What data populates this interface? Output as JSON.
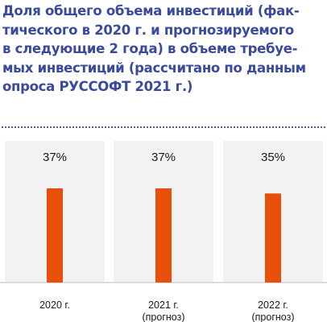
{
  "chart_data": {
    "type": "bar",
    "title_lines": [
      "Доля общего объема инвестиций (фак-",
      "тического в 2020 г. и прогнозируемого",
      "в следующие 2 года) в объеме требуе-",
      "мых инвестиций (рассчитано по данным",
      "опроса РУССОФТ 2021 г.)"
    ],
    "categories": [
      [
        "2020 г."
      ],
      [
        "2021 г.",
        "(прогноз)"
      ],
      [
        "2022 г.",
        "(прогноз)"
      ]
    ],
    "values": [
      37,
      37,
      35
    ],
    "value_labels": [
      "37%",
      "37%",
      "35%"
    ],
    "unit": "%",
    "ylim": [
      0,
      100
    ],
    "bar_color": "#e8500a",
    "title_color": "#3a4a9c",
    "grid": false,
    "legend": "none"
  }
}
